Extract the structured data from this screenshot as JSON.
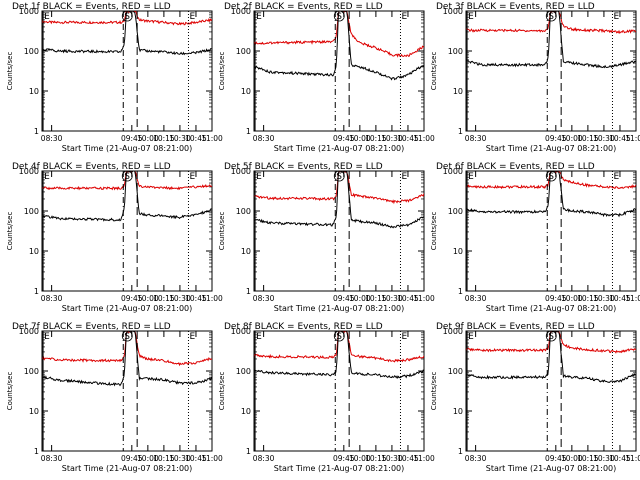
{
  "figure": {
    "start_time_label": "Start Time (21-Aug-07 08:21:00)",
    "ylabel": "Counts/sec",
    "colors": {
      "events": "#000000",
      "lld": "#dd0000",
      "frame": "#000000"
    }
  },
  "chart_data": [
    {
      "type": "line",
      "title": "Det 1f BLACK = Events, RED = LLD",
      "xlabel": "Start Time (21-Aug-07 08:21:00)",
      "ylabel": "Counts/sec",
      "x_ticks": [
        "08:30",
        "09:45",
        "10:00",
        "10:15",
        "10:30",
        "10:45",
        "11:00"
      ],
      "y_ticks": [
        "1",
        "10",
        "100",
        "1000"
      ],
      "yscale": "log",
      "ylim": [
        1,
        1000
      ],
      "markers": [
        {
          "label": "E",
          "time": "08:22",
          "style": "solid"
        },
        {
          "label": "S",
          "time": "09:37",
          "style": "dashdot"
        },
        {
          "label": "",
          "time": "09:50",
          "style": "dashed"
        },
        {
          "label": "E",
          "time": "10:38",
          "style": "dotted"
        }
      ],
      "series": [
        {
          "name": "LLD",
          "x": [
            "08:21",
            "08:30",
            "08:35",
            "09:35",
            "09:38",
            "09:40",
            "09:48",
            "09:52",
            "10:00",
            "10:15",
            "10:30",
            "10:45",
            "11:00"
          ],
          "values": [
            550,
            520,
            520,
            520,
            560,
            1000,
            1000,
            600,
            560,
            520,
            470,
            520,
            600
          ]
        },
        {
          "name": "Events",
          "x": [
            "08:21",
            "08:30",
            "08:35",
            "09:35",
            "09:38",
            "09:40",
            "09:48",
            "09:52",
            "10:00",
            "10:15",
            "10:30",
            "10:45",
            "11:00"
          ],
          "values": [
            110,
            105,
            100,
            95,
            150,
            1000,
            1000,
            105,
            100,
            95,
            85,
            90,
            110
          ]
        }
      ]
    },
    {
      "type": "line",
      "title": "Det 2f BLACK = Events, RED = LLD",
      "xlabel": "Start Time (21-Aug-07 08:21:00)",
      "ylabel": "Counts/sec",
      "x_ticks": [
        "08:30",
        "09:45",
        "10:00",
        "10:15",
        "10:30",
        "10:45",
        "11:00"
      ],
      "y_ticks": [
        "1",
        "10",
        "100",
        "1000"
      ],
      "yscale": "log",
      "ylim": [
        1,
        1000
      ],
      "markers": [
        {
          "label": "E",
          "time": "08:22",
          "style": "solid"
        },
        {
          "label": "S",
          "time": "09:37",
          "style": "dashdot"
        },
        {
          "label": "",
          "time": "09:50",
          "style": "dashed"
        },
        {
          "label": "E",
          "time": "10:38",
          "style": "dotted"
        }
      ],
      "series": [
        {
          "name": "LLD",
          "x": [
            "08:21",
            "08:30",
            "08:35",
            "09:35",
            "09:38",
            "09:40",
            "09:48",
            "09:52",
            "10:00",
            "10:15",
            "10:30",
            "10:45",
            "11:00"
          ],
          "values": [
            160,
            155,
            160,
            170,
            220,
            1000,
            1000,
            260,
            160,
            120,
            80,
            75,
            130
          ]
        },
        {
          "name": "Events",
          "x": [
            "08:21",
            "08:30",
            "08:35",
            "09:35",
            "09:38",
            "09:40",
            "09:48",
            "09:52",
            "10:00",
            "10:15",
            "10:30",
            "10:45",
            "11:00"
          ],
          "values": [
            40,
            35,
            30,
            25,
            40,
            1000,
            1000,
            45,
            40,
            30,
            20,
            25,
            45
          ]
        }
      ]
    },
    {
      "type": "line",
      "title": "Det 3f BLACK = Events, RED = LLD",
      "xlabel": "Start Time (21-Aug-07 08:21:00)",
      "ylabel": "Counts/sec",
      "x_ticks": [
        "08:30",
        "09:45",
        "10:00",
        "10:15",
        "10:30",
        "10:45",
        "11:00"
      ],
      "y_ticks": [
        "1",
        "10",
        "100",
        "1000"
      ],
      "yscale": "log",
      "ylim": [
        1,
        1000
      ],
      "markers": [
        {
          "label": "E",
          "time": "08:22",
          "style": "solid"
        },
        {
          "label": "S",
          "time": "09:37",
          "style": "dashdot"
        },
        {
          "label": "",
          "time": "09:50",
          "style": "dashed"
        },
        {
          "label": "E",
          "time": "10:38",
          "style": "dotted"
        }
      ],
      "series": [
        {
          "name": "LLD",
          "x": [
            "08:21",
            "08:30",
            "08:35",
            "09:35",
            "09:38",
            "09:40",
            "09:48",
            "09:52",
            "10:00",
            "10:15",
            "10:30",
            "10:45",
            "11:00"
          ],
          "values": [
            340,
            320,
            330,
            320,
            380,
            1000,
            1000,
            420,
            350,
            330,
            320,
            300,
            320
          ]
        },
        {
          "name": "Events",
          "x": [
            "08:21",
            "08:30",
            "08:35",
            "09:35",
            "09:38",
            "09:40",
            "09:48",
            "09:52",
            "10:00",
            "10:15",
            "10:30",
            "10:45",
            "11:00"
          ],
          "values": [
            55,
            50,
            45,
            45,
            70,
            1000,
            1000,
            55,
            50,
            45,
            40,
            45,
            55
          ]
        }
      ]
    },
    {
      "type": "line",
      "title": "Det 4f BLACK = Events, RED = LLD",
      "xlabel": "Start Time (21-Aug-07 08:21:00)",
      "ylabel": "Counts/sec",
      "x_ticks": [
        "08:30",
        "09:45",
        "10:00",
        "10:15",
        "10:30",
        "10:45",
        "11:00"
      ],
      "y_ticks": [
        "1",
        "10",
        "100",
        "1000"
      ],
      "yscale": "log",
      "ylim": [
        1,
        1000
      ],
      "markers": [
        {
          "label": "E",
          "time": "08:22",
          "style": "solid"
        },
        {
          "label": "S",
          "time": "09:37",
          "style": "dashdot"
        },
        {
          "label": "",
          "time": "09:50",
          "style": "dashed"
        },
        {
          "label": "E",
          "time": "10:38",
          "style": "dotted"
        }
      ],
      "series": [
        {
          "name": "LLD",
          "x": [
            "08:21",
            "08:30",
            "08:35",
            "09:35",
            "09:38",
            "09:40",
            "09:48",
            "09:52",
            "10:00",
            "10:15",
            "10:30",
            "10:45",
            "11:00"
          ],
          "values": [
            380,
            370,
            370,
            370,
            420,
            1000,
            1000,
            420,
            400,
            380,
            370,
            400,
            440
          ]
        },
        {
          "name": "Events",
          "x": [
            "08:21",
            "08:30",
            "08:35",
            "09:35",
            "09:38",
            "09:40",
            "09:48",
            "09:52",
            "10:00",
            "10:15",
            "10:30",
            "10:45",
            "11:00"
          ],
          "values": [
            75,
            70,
            65,
            60,
            120,
            1000,
            1000,
            85,
            80,
            75,
            70,
            80,
            110
          ]
        }
      ]
    },
    {
      "type": "line",
      "title": "Det 5f BLACK = Events, RED = LLD",
      "xlabel": "Start Time (21-Aug-07 08:21:00)",
      "ylabel": "Counts/sec",
      "x_ticks": [
        "08:30",
        "09:45",
        "10:00",
        "10:15",
        "10:30",
        "10:45",
        "11:00"
      ],
      "y_ticks": [
        "1",
        "10",
        "100",
        "1000"
      ],
      "yscale": "log",
      "ylim": [
        1,
        1000
      ],
      "markers": [
        {
          "label": "E",
          "time": "08:22",
          "style": "solid"
        },
        {
          "label": "S",
          "time": "09:37",
          "style": "dashdot"
        },
        {
          "label": "",
          "time": "09:50",
          "style": "dashed"
        },
        {
          "label": "E",
          "time": "10:38",
          "style": "dotted"
        }
      ],
      "series": [
        {
          "name": "LLD",
          "x": [
            "08:21",
            "08:30",
            "08:35",
            "09:35",
            "09:38",
            "09:40",
            "09:48",
            "09:52",
            "10:00",
            "10:15",
            "10:30",
            "10:45",
            "11:00"
          ],
          "values": [
            230,
            220,
            210,
            200,
            240,
            1000,
            1000,
            260,
            230,
            210,
            170,
            180,
            260
          ]
        },
        {
          "name": "Events",
          "x": [
            "08:21",
            "08:30",
            "08:35",
            "09:35",
            "09:38",
            "09:40",
            "09:48",
            "09:52",
            "10:00",
            "10:15",
            "10:30",
            "10:45",
            "11:00"
          ],
          "values": [
            60,
            55,
            50,
            45,
            70,
            1000,
            1000,
            60,
            55,
            50,
            40,
            45,
            70
          ]
        }
      ]
    },
    {
      "type": "line",
      "title": "Det 6f BLACK = Events, RED = LLD",
      "xlabel": "Start Time (21-Aug-07 08:21:00)",
      "ylabel": "Counts/sec",
      "x_ticks": [
        "08:30",
        "09:45",
        "10:00",
        "10:15",
        "10:30",
        "10:45",
        "11:00"
      ],
      "y_ticks": [
        "1",
        "10",
        "100",
        "1000"
      ],
      "yscale": "log",
      "ylim": [
        1,
        1000
      ],
      "markers": [
        {
          "label": "E",
          "time": "08:22",
          "style": "solid"
        },
        {
          "label": "S",
          "time": "09:37",
          "style": "dashdot"
        },
        {
          "label": "",
          "time": "09:50",
          "style": "dashed"
        },
        {
          "label": "E",
          "time": "10:38",
          "style": "dotted"
        }
      ],
      "series": [
        {
          "name": "LLD",
          "x": [
            "08:21",
            "08:30",
            "08:35",
            "09:35",
            "09:38",
            "09:40",
            "09:48",
            "09:52",
            "10:00",
            "10:15",
            "10:30",
            "10:45",
            "11:00"
          ],
          "values": [
            420,
            400,
            400,
            400,
            460,
            1000,
            1000,
            600,
            520,
            440,
            400,
            380,
            420
          ]
        },
        {
          "name": "Events",
          "x": [
            "08:21",
            "08:30",
            "08:35",
            "09:35",
            "09:38",
            "09:40",
            "09:48",
            "09:52",
            "10:00",
            "10:15",
            "10:30",
            "10:45",
            "11:00"
          ],
          "values": [
            110,
            100,
            95,
            95,
            130,
            1000,
            1000,
            110,
            100,
            95,
            80,
            80,
            110
          ]
        }
      ]
    },
    {
      "type": "line",
      "title": "Det 7f BLACK = Events, RED = LLD",
      "xlabel": "Start Time (21-Aug-07 08:21:00)",
      "ylabel": "Counts/sec",
      "x_ticks": [
        "08:30",
        "09:45",
        "10:00",
        "10:15",
        "10:30",
        "10:45",
        "11:00"
      ],
      "y_ticks": [
        "1",
        "10",
        "100",
        "1000"
      ],
      "yscale": "log",
      "ylim": [
        1,
        1000
      ],
      "markers": [
        {
          "label": "E",
          "time": "08:22",
          "style": "solid"
        },
        {
          "label": "S",
          "time": "09:37",
          "style": "dashdot"
        },
        {
          "label": "",
          "time": "09:50",
          "style": "dashed"
        },
        {
          "label": "E",
          "time": "10:38",
          "style": "dotted"
        }
      ],
      "series": [
        {
          "name": "LLD",
          "x": [
            "08:21",
            "08:30",
            "08:35",
            "09:35",
            "09:38",
            "09:40",
            "09:48",
            "09:52",
            "10:00",
            "10:15",
            "10:30",
            "10:45",
            "11:00"
          ],
          "values": [
            210,
            200,
            190,
            180,
            220,
            1000,
            1000,
            240,
            200,
            180,
            150,
            160,
            210
          ]
        },
        {
          "name": "Events",
          "x": [
            "08:21",
            "08:30",
            "08:35",
            "09:35",
            "09:38",
            "09:40",
            "09:48",
            "09:52",
            "10:00",
            "10:15",
            "10:30",
            "10:45",
            "11:00"
          ],
          "values": [
            70,
            65,
            60,
            45,
            80,
            1000,
            1000,
            65,
            65,
            60,
            50,
            50,
            65
          ]
        }
      ]
    },
    {
      "type": "line",
      "title": "Det 8f BLACK = Events, RED = LLD",
      "xlabel": "Start Time (21-Aug-07 08:21:00)",
      "ylabel": "Counts/sec",
      "x_ticks": [
        "08:30",
        "09:45",
        "10:00",
        "10:15",
        "10:30",
        "10:45",
        "11:00"
      ],
      "y_ticks": [
        "1",
        "10",
        "100",
        "1000"
      ],
      "yscale": "log",
      "ylim": [
        1,
        1000
      ],
      "markers": [
        {
          "label": "E",
          "time": "08:22",
          "style": "solid"
        },
        {
          "label": "S",
          "time": "09:37",
          "style": "dashdot"
        },
        {
          "label": "",
          "time": "09:50",
          "style": "dashed"
        },
        {
          "label": "E",
          "time": "10:38",
          "style": "dotted"
        }
      ],
      "series": [
        {
          "name": "LLD",
          "x": [
            "08:21",
            "08:30",
            "08:35",
            "09:35",
            "09:38",
            "09:40",
            "09:48",
            "09:52",
            "10:00",
            "10:15",
            "10:30",
            "10:45",
            "11:00"
          ],
          "values": [
            250,
            240,
            230,
            220,
            250,
            1000,
            1000,
            260,
            230,
            210,
            180,
            190,
            230
          ]
        },
        {
          "name": "Events",
          "x": [
            "08:21",
            "08:30",
            "08:35",
            "09:35",
            "09:38",
            "09:40",
            "09:48",
            "09:52",
            "10:00",
            "10:15",
            "10:30",
            "10:45",
            "11:00"
          ],
          "values": [
            100,
            95,
            90,
            80,
            100,
            1000,
            1000,
            90,
            85,
            80,
            70,
            75,
            100
          ]
        }
      ]
    },
    {
      "type": "line",
      "title": "Det 9f BLACK = Events, RED = LLD",
      "xlabel": "Start Time (21-Aug-07 08:21:00)",
      "ylabel": "Counts/sec",
      "x_ticks": [
        "08:30",
        "09:45",
        "10:00",
        "10:15",
        "10:30",
        "10:45",
        "11:00"
      ],
      "y_ticks": [
        "1",
        "10",
        "100",
        "1000"
      ],
      "yscale": "log",
      "ylim": [
        1,
        1000
      ],
      "markers": [
        {
          "label": "E",
          "time": "08:22",
          "style": "solid"
        },
        {
          "label": "S",
          "time": "09:37",
          "style": "dashdot"
        },
        {
          "label": "",
          "time": "09:50",
          "style": "dashed"
        },
        {
          "label": "E",
          "time": "10:38",
          "style": "dotted"
        }
      ],
      "series": [
        {
          "name": "LLD",
          "x": [
            "08:21",
            "08:30",
            "08:35",
            "09:35",
            "09:38",
            "09:40",
            "09:48",
            "09:52",
            "10:00",
            "10:15",
            "10:30",
            "10:45",
            "11:00"
          ],
          "values": [
            350,
            340,
            330,
            330,
            380,
            1000,
            1000,
            450,
            380,
            340,
            320,
            300,
            360
          ]
        },
        {
          "name": "Events",
          "x": [
            "08:21",
            "08:30",
            "08:35",
            "09:35",
            "09:38",
            "09:40",
            "09:48",
            "09:52",
            "10:00",
            "10:15",
            "10:30",
            "10:45",
            "11:00"
          ],
          "values": [
            80,
            75,
            70,
            70,
            90,
            1000,
            1000,
            75,
            70,
            65,
            55,
            55,
            85
          ]
        }
      ]
    }
  ]
}
